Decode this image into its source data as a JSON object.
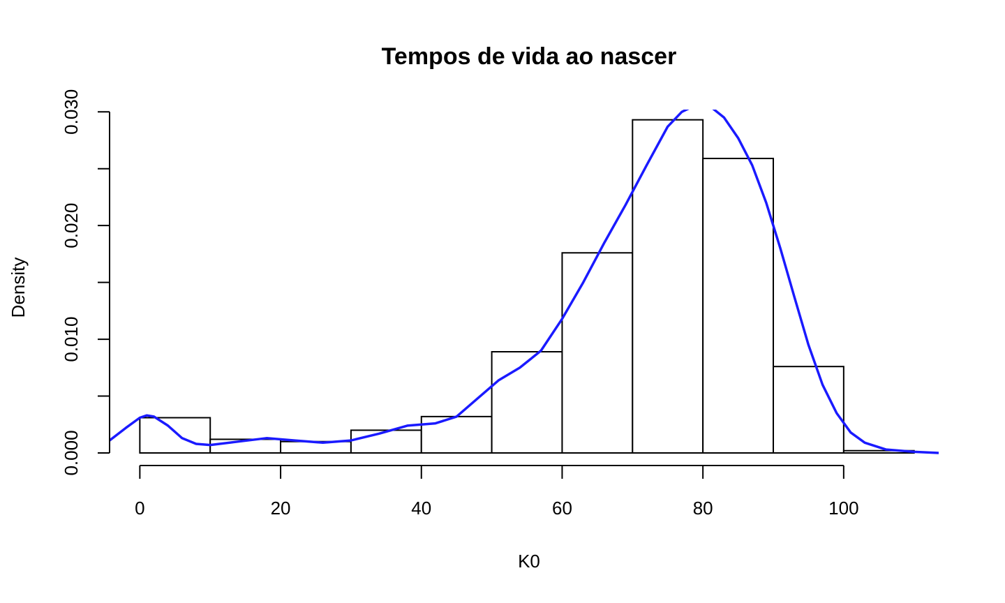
{
  "chart_data": {
    "type": "bar",
    "title": "Tempos de vida ao nascer",
    "xlabel": "K0",
    "ylabel": "Density",
    "xlim": [
      -4.3,
      113.5
    ],
    "ylim": [
      0,
      0.0302
    ],
    "x_ticks": [
      0,
      20,
      40,
      60,
      80,
      100
    ],
    "y_ticks": [
      0,
      0.005,
      0.01,
      0.015,
      0.02,
      0.025,
      0.03
    ],
    "y_tick_labels": [
      "0.000",
      "",
      "0.010",
      "",
      "0.020",
      "",
      "0.030"
    ],
    "grid": false,
    "histogram": {
      "bin_edges": [
        0,
        10,
        20,
        30,
        40,
        50,
        60,
        70,
        80,
        90,
        100,
        110
      ],
      "densities": [
        0.0031,
        0.0012,
        0.001,
        0.002,
        0.0032,
        0.0089,
        0.0176,
        0.0293,
        0.0259,
        0.0076,
        0.0002
      ]
    },
    "series": [
      {
        "type": "line",
        "color": "#1a1aff",
        "x": [
          -4.3,
          -2,
          0,
          1,
          2,
          4,
          6,
          8,
          10,
          14,
          18,
          22,
          26,
          30,
          34,
          38,
          42,
          45,
          48,
          51,
          54,
          57,
          60,
          63,
          66,
          69,
          72,
          75,
          77,
          79,
          81,
          83,
          85,
          87,
          89,
          91,
          93,
          95,
          97,
          99,
          101,
          103,
          106,
          110,
          113.5
        ],
        "y": [
          0.0011,
          0.0022,
          0.0031,
          0.0033,
          0.0032,
          0.0024,
          0.0013,
          0.0008,
          0.0007,
          0.001,
          0.0013,
          0.0011,
          0.0009,
          0.0011,
          0.0017,
          0.0024,
          0.0026,
          0.0032,
          0.0048,
          0.0064,
          0.0075,
          0.009,
          0.0118,
          0.015,
          0.0185,
          0.0218,
          0.0253,
          0.0287,
          0.03,
          0.0306,
          0.0305,
          0.0295,
          0.0277,
          0.0253,
          0.022,
          0.018,
          0.0137,
          0.0095,
          0.006,
          0.0035,
          0.0018,
          0.0009,
          0.0003,
          0.0001,
          0.0
        ]
      }
    ]
  }
}
